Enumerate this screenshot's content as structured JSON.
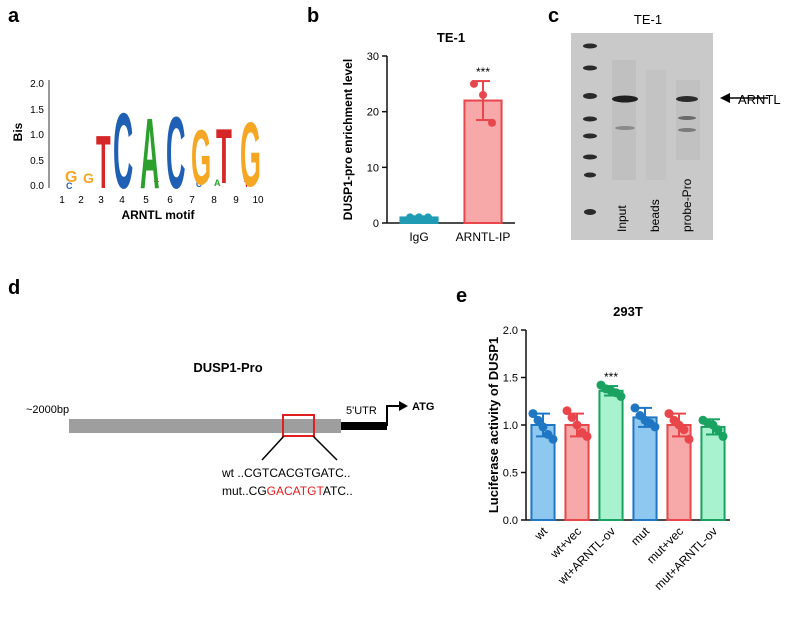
{
  "panel_labels": {
    "a": "a",
    "b": "b",
    "c": "c",
    "d": "d",
    "e": "e"
  },
  "panel_a": {
    "ylabel": "Bis",
    "yticks": [
      "2.0",
      "1.5",
      "1.0",
      "0.5",
      "0.0"
    ],
    "xticks": [
      "1",
      "2",
      "3",
      "4",
      "5",
      "6",
      "7",
      "8",
      "9",
      "10"
    ],
    "xlabel": "ARNTL motif",
    "letters": [
      "T",
      "C",
      "A",
      "C",
      "G",
      "T",
      "G"
    ],
    "colors": {
      "A": "#2ca02c",
      "C": "#1f5fb4",
      "G": "#f5a623",
      "T": "#d62728"
    }
  },
  "panel_c": {
    "title": "TE-1",
    "arrow_label": "ARNTL",
    "lanes": [
      "Input",
      "beads",
      "probe-Pro"
    ]
  },
  "panel_d": {
    "title": "DUSP1-Pro",
    "left_label": "~2000bp",
    "utr_label": "5'UTR",
    "atg_label": "ATG",
    "wt_prefix": "wt  ..",
    "wt_seq": "CGTCACGTGATC..",
    "mut_prefix": "mut..CG",
    "mut_highlight": "GACATGT",
    "mut_suffix": "ATC..",
    "highlight_color": "#e02020"
  },
  "chart_data": [
    {
      "type": "bar",
      "panel": "b",
      "title": "TE-1",
      "ylabel": "DUSP1-pro enrichment level",
      "xlabel": "",
      "categories": [
        "IgG",
        "ARNTL-IP"
      ],
      "values": [
        1.0,
        22.0
      ],
      "errors": [
        0.2,
        3.5
      ],
      "points": [
        [
          1.0,
          1.0,
          1.0
        ],
        [
          25.0,
          23.0,
          18.0
        ]
      ],
      "colors": [
        "#1f9bb3",
        "#e8464a"
      ],
      "fill_colors": [
        "#1f9bb3",
        "#f7a8a8"
      ],
      "significance": [
        "",
        "***"
      ],
      "ylim": [
        0,
        30
      ],
      "yticks": [
        "0",
        "10",
        "20",
        "30"
      ]
    },
    {
      "type": "bar",
      "panel": "e",
      "title": "293T",
      "ylabel": "Luciferase activity of DUSP1",
      "xlabel": "",
      "categories": [
        "wt",
        "wt+vec",
        "wt+ARNTL-ov",
        "mut",
        "mut+vec",
        "mut+ARNTL-ov"
      ],
      "values": [
        1.0,
        1.0,
        1.36,
        1.08,
        1.0,
        0.98
      ],
      "errors": [
        0.12,
        0.12,
        0.05,
        0.1,
        0.12,
        0.08
      ],
      "points": [
        [
          1.12,
          1.05,
          0.98,
          0.9,
          0.85
        ],
        [
          1.15,
          1.08,
          1.0,
          0.92,
          0.88
        ],
        [
          1.42,
          1.38,
          1.36,
          1.34,
          1.3
        ],
        [
          1.18,
          1.1,
          1.05,
          1.02,
          0.98
        ],
        [
          1.12,
          1.05,
          1.0,
          0.95,
          0.85
        ],
        [
          1.05,
          1.02,
          1.0,
          0.95,
          0.88
        ]
      ],
      "colors": [
        "#1f77c4",
        "#e8464a",
        "#1aa260",
        "#1f77c4",
        "#e8464a",
        "#1aa260"
      ],
      "fill_colors": [
        "#8ec8f0",
        "#f7a8a8",
        "#a9f2cf",
        "#8ec8f0",
        "#f7a8a8",
        "#a9f2cf"
      ],
      "significance": [
        "",
        "",
        "***",
        "",
        "",
        ""
      ],
      "ylim": [
        0,
        2.0
      ],
      "yticks": [
        "0.0",
        "0.5",
        "1.0",
        "1.5",
        "2.0"
      ]
    }
  ]
}
